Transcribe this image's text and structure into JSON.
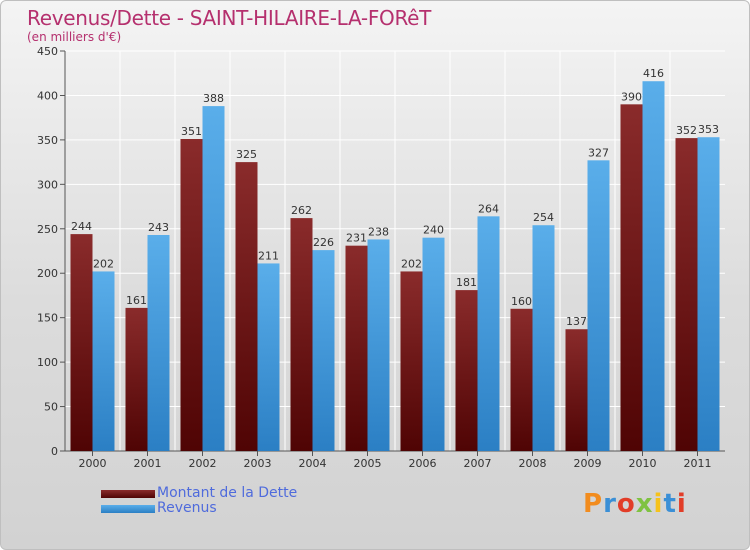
{
  "title": "Revenus/Dette - SAINT-HILAIRE-LA-FORêT",
  "subtitle": "(en milliers d'€)",
  "logo_text": "Proxiti",
  "chart_data": {
    "type": "bar",
    "title": "Revenus/Dette - SAINT-HILAIRE-LA-FORêT",
    "ylabel": "(en milliers d'€)",
    "xlabel": "",
    "categories": [
      "2000",
      "2001",
      "2002",
      "2003",
      "2004",
      "2005",
      "2006",
      "2007",
      "2008",
      "2009",
      "2010",
      "2011"
    ],
    "series": [
      {
        "name": "Montant de la Dette",
        "color": "#6b1515",
        "values": [
          244,
          161,
          351,
          325,
          262,
          231,
          202,
          181,
          160,
          137,
          390,
          352
        ]
      },
      {
        "name": "Revenus",
        "color": "#3d97dc",
        "values": [
          202,
          243,
          388,
          211,
          226,
          238,
          240,
          264,
          254,
          327,
          416,
          353
        ]
      }
    ],
    "ylim": [
      0,
      450
    ],
    "yticks": [
      0,
      50,
      100,
      150,
      200,
      250,
      300,
      350,
      400,
      450
    ],
    "grid": true,
    "legend": "bottom-left"
  }
}
